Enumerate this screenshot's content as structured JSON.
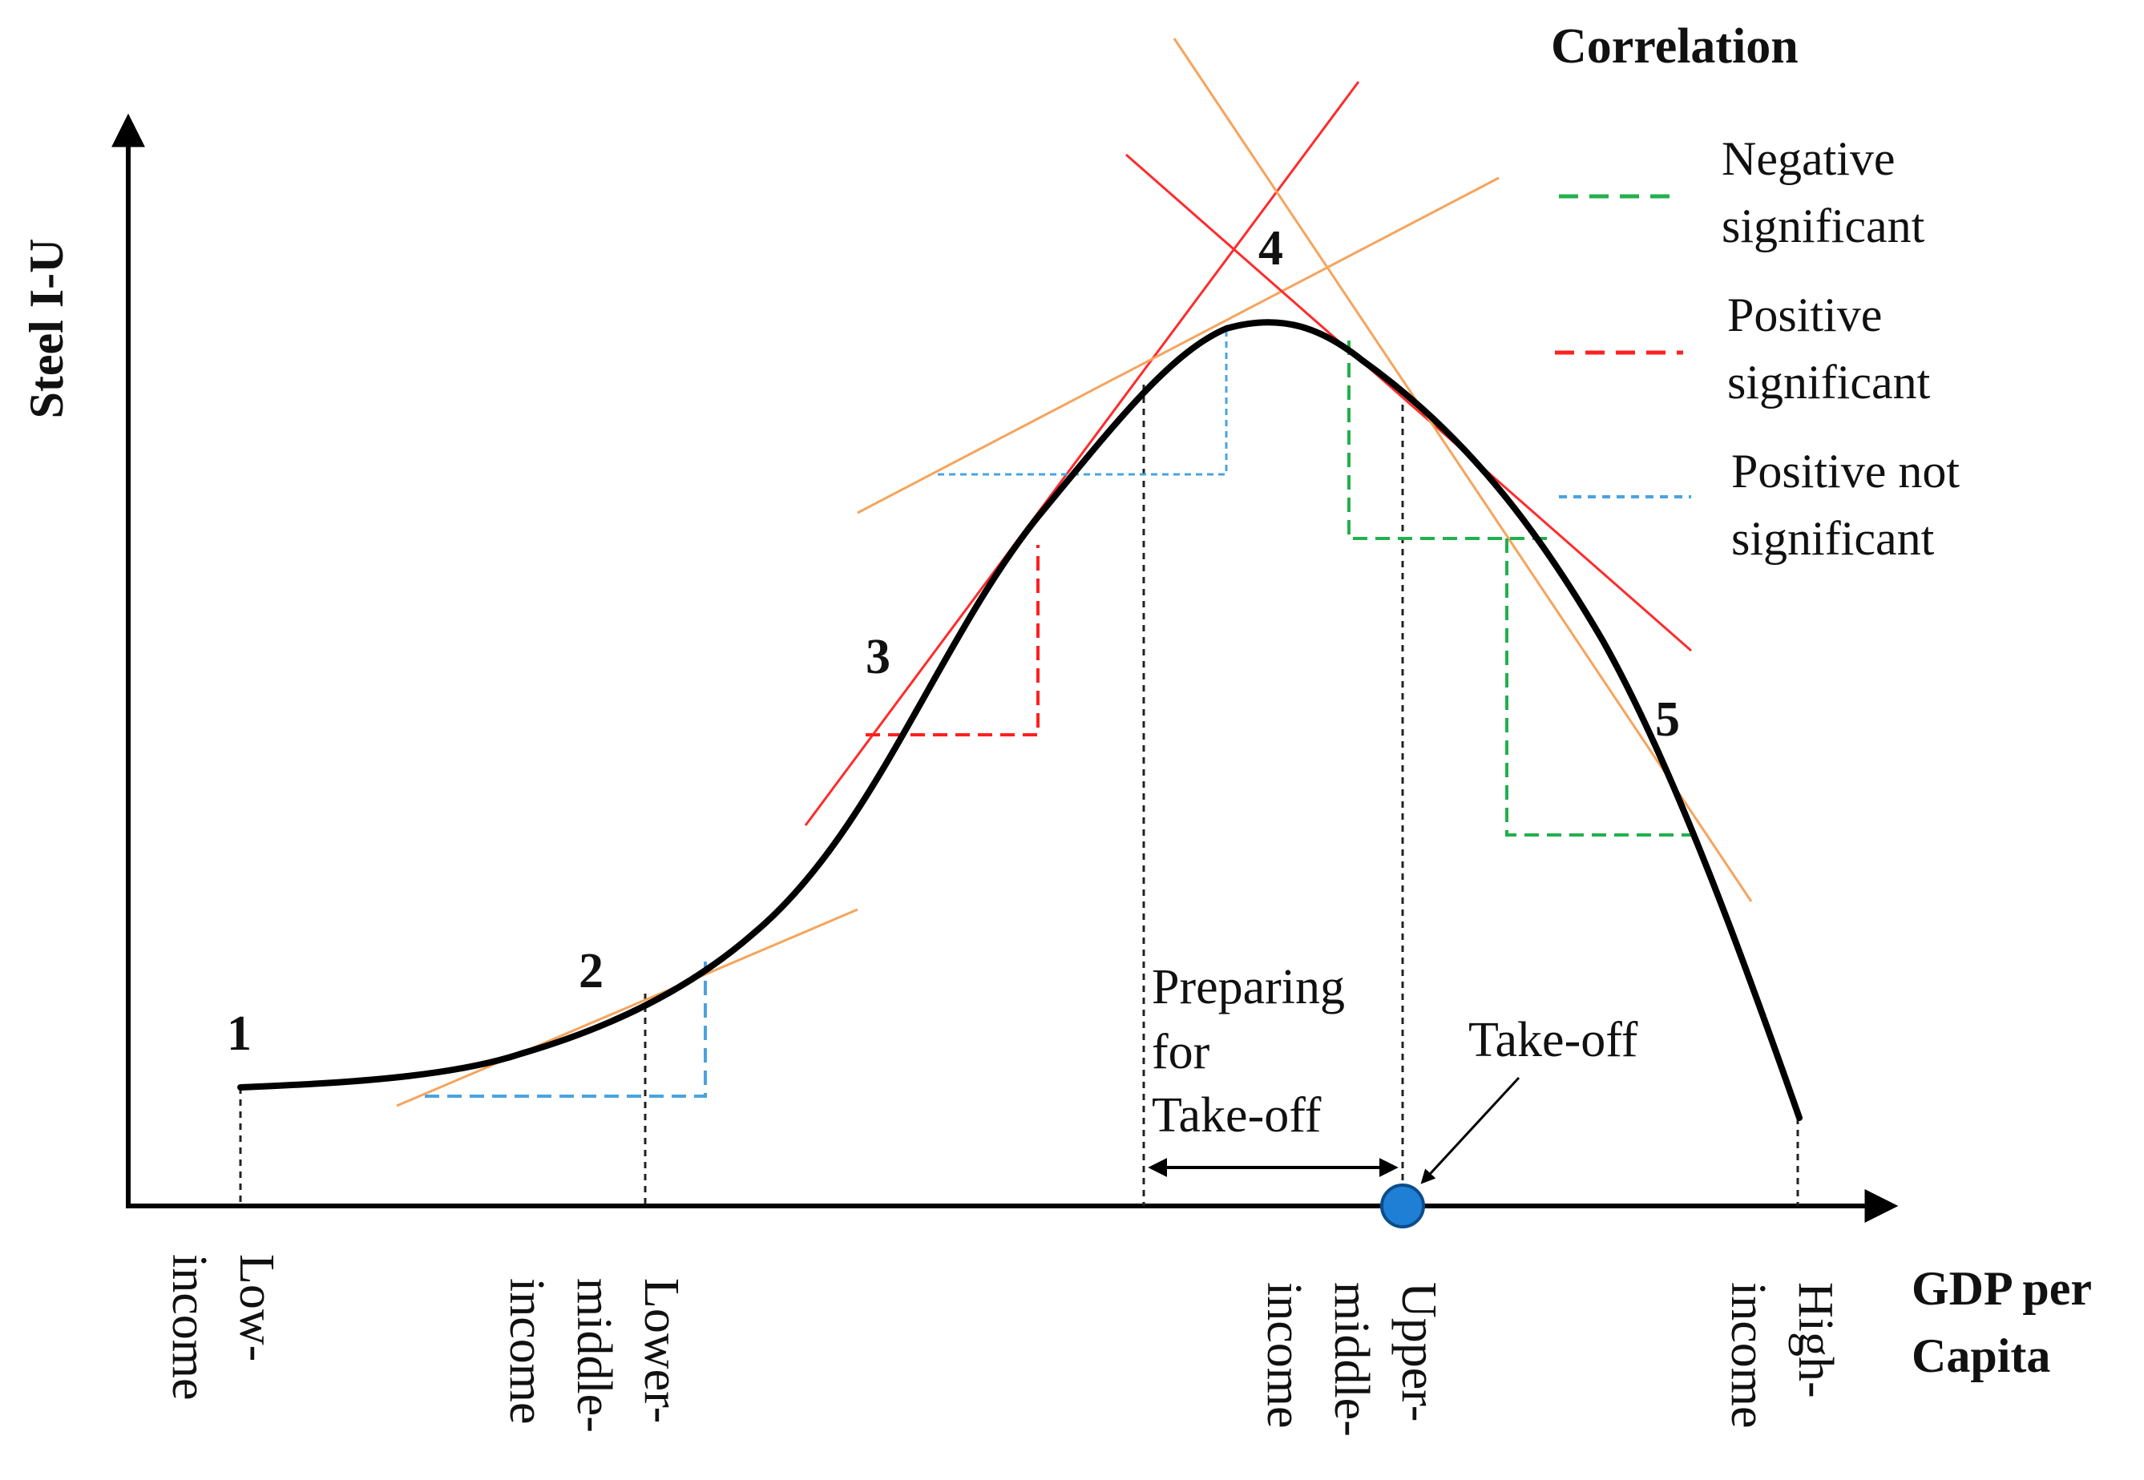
{
  "y_axis_title": "Steel I-U",
  "x_axis_title": [
    "GDP per",
    "Capita"
  ],
  "stages": [
    "1",
    "2",
    "3",
    "4",
    "5"
  ],
  "income_levels": [
    {
      "lines": [
        "Low-",
        "income"
      ]
    },
    {
      "lines": [
        "Lower-",
        "middle-",
        "income"
      ]
    },
    {
      "lines": [
        "Upper-",
        "middle-",
        "income"
      ]
    },
    {
      "lines": [
        "High-",
        "income"
      ]
    }
  ],
  "annotations": {
    "preparing": [
      "Preparing",
      "for",
      "Take-off"
    ],
    "takeoff": "Take-off"
  },
  "legend": {
    "title": "Correlation",
    "items": [
      {
        "lines": [
          "Negative",
          "significant"
        ],
        "color": "#22b14c",
        "icon": "dashed-line-icon"
      },
      {
        "lines": [
          "Positive",
          "significant"
        ],
        "color": "#ff2020",
        "icon": "dashed-line-icon"
      },
      {
        "lines": [
          "Positive not",
          "significant"
        ],
        "color": "#4aa3df",
        "icon": "dashed-line-icon"
      }
    ]
  },
  "colors": {
    "curve": "#000000",
    "tangent_red": "#ff2b2b",
    "tangent_orange": "#f5a45b",
    "negative_significant": "#22b14c",
    "positive_significant": "#ff2020",
    "positive_not_significant": "#4aa3df",
    "takeoff_marker": "#1f7fd4"
  }
}
